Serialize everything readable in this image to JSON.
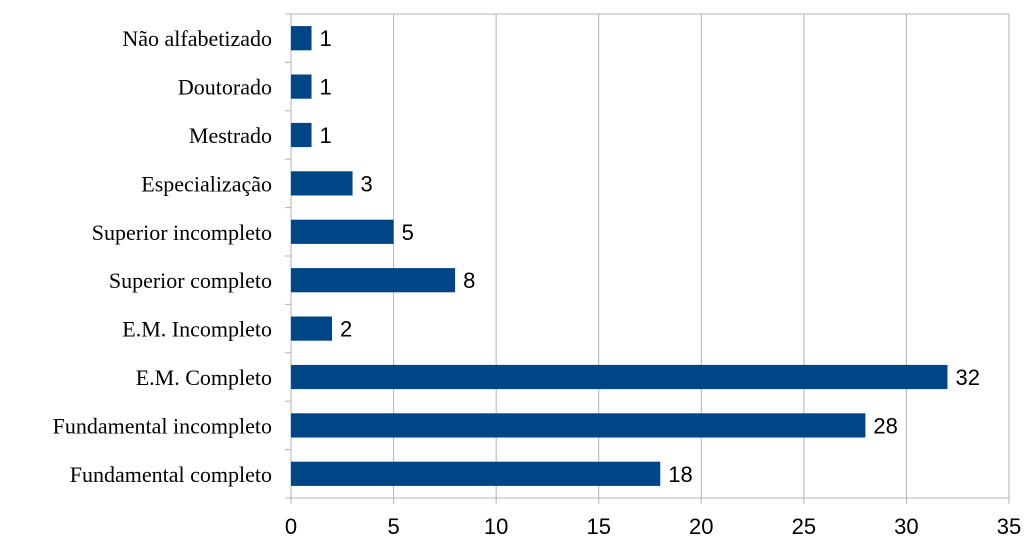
{
  "chart_data": {
    "type": "bar",
    "orientation": "horizontal",
    "categories": [
      "Não alfabetizado",
      "Doutorado",
      "Mestrado",
      "Especialização",
      "Superior incompleto",
      "Superior completo",
      "E.M. Incompleto",
      "E.M. Completo",
      "Fundamental incompleto",
      "Fundamental completo"
    ],
    "values": [
      1,
      1,
      1,
      3,
      5,
      8,
      2,
      32,
      28,
      18
    ],
    "xlim": [
      0,
      35
    ],
    "xticks": [
      "0",
      "5",
      "10",
      "15",
      "20",
      "25",
      "30",
      "35"
    ],
    "grid": "vertical",
    "legend": "none",
    "bar_color": "#004586"
  }
}
